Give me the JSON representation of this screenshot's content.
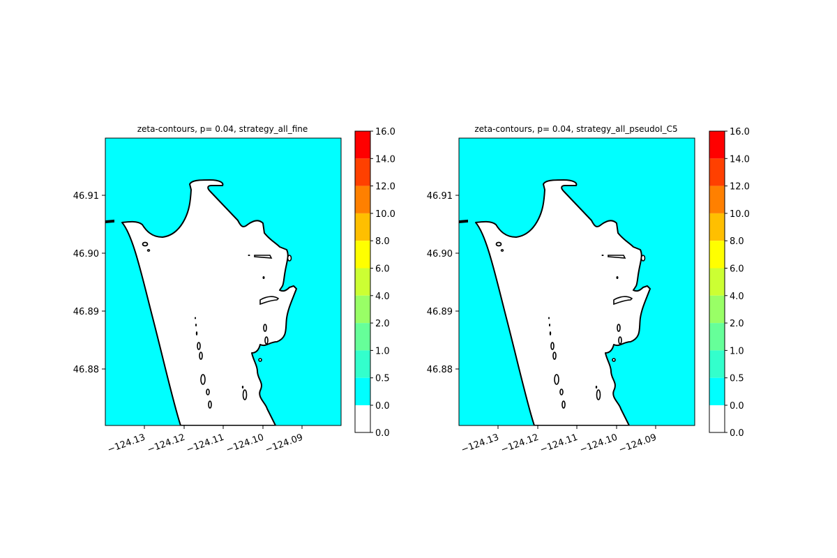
{
  "panels": [
    {
      "title": "zeta-contours, p= 0.04, strategy_all_fine",
      "y_ticks": [
        "46.91",
        "46.90",
        "46.89",
        "46.88"
      ],
      "x_ticks": [
        "−124.13",
        "−124.12",
        "−124.11",
        "−124.10",
        "−124.09"
      ],
      "colorbar_labels": [
        "16.0",
        "14.0",
        "12.0",
        "10.0",
        "8.0",
        "6.0",
        "4.0",
        "2.0",
        "1.0",
        "0.5",
        "0.0",
        "0.0"
      ]
    },
    {
      "title": "zeta-contours, p= 0.04, strategy_all_pseudoI_C5",
      "y_ticks": [
        "46.91",
        "46.90",
        "46.89",
        "46.88"
      ],
      "x_ticks": [
        "−124.13",
        "−124.12",
        "−124.11",
        "−124.10",
        "−124.09"
      ],
      "colorbar_labels": [
        "16.0",
        "14.0",
        "12.0",
        "10.0",
        "8.0",
        "6.0",
        "4.0",
        "2.0",
        "1.0",
        "0.5",
        "0.0",
        "0.0"
      ]
    }
  ],
  "colors": {
    "water": "#00ffff",
    "land": "#ffffff",
    "coastline": "#000000",
    "colorbar": [
      "#ff0000",
      "#ff4000",
      "#ff8000",
      "#ffbf00",
      "#ffff00",
      "#ccff33",
      "#99ff66",
      "#66ff99",
      "#33ffcc",
      "#00ffff",
      "#ffffff"
    ]
  }
}
